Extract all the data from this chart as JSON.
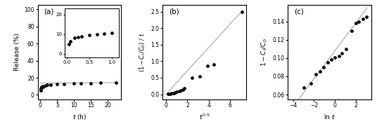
{
  "panel_a": {
    "label": "(a)",
    "scatter_x": [
      0.05,
      0.08,
      0.17,
      0.25,
      0.33,
      0.5,
      0.67,
      0.83,
      1.0,
      1.5,
      2.0,
      3.0,
      5.0,
      7.0,
      10.0,
      12.0,
      15.0,
      18.0,
      22.5
    ],
    "scatter_y": [
      5.0,
      6.5,
      8.0,
      8.5,
      9.0,
      9.5,
      9.8,
      10.2,
      10.5,
      11.0,
      11.5,
      12.0,
      12.5,
      12.8,
      13.2,
      13.5,
      13.8,
      14.0,
      14.2
    ],
    "fit_x": [
      0.0,
      22.5
    ],
    "fit_y": [
      13.8,
      14.3
    ],
    "xlabel": "$t$ (h)",
    "ylabel": "Release (%)",
    "xlim": [
      -0.8,
      24.0
    ],
    "ylim": [
      -5,
      105
    ],
    "yticks": [
      0,
      20,
      40,
      60,
      80,
      100
    ],
    "xticks": [
      0,
      5,
      10,
      15,
      20
    ],
    "inset": {
      "scatter_x": [
        0.05,
        0.08,
        0.17,
        0.25,
        0.33,
        0.5,
        0.67,
        0.83,
        1.0
      ],
      "scatter_y": [
        5.0,
        6.5,
        8.0,
        8.5,
        9.0,
        9.5,
        9.8,
        10.2,
        10.5
      ],
      "xlim": [
        -0.05,
        1.15
      ],
      "ylim": [
        -2,
        23
      ],
      "xticks": [
        0.0,
        0.5,
        1.0
      ],
      "yticks": [
        0,
        10,
        20
      ]
    }
  },
  "panel_b": {
    "label": "(b)",
    "scatter_x": [
      0.22,
      0.29,
      0.41,
      0.55,
      0.71,
      0.84,
      1.0,
      1.22,
      1.41,
      1.58,
      1.73,
      2.45,
      3.16,
      3.87,
      4.47,
      7.07
    ],
    "scatter_y": [
      0.01,
      0.01,
      0.02,
      0.03,
      0.04,
      0.05,
      0.07,
      0.1,
      0.12,
      0.14,
      0.17,
      0.5,
      0.55,
      0.85,
      0.9,
      2.5
    ],
    "fit_x": [
      0.0,
      7.2
    ],
    "fit_y": [
      0.0,
      2.55
    ],
    "xlabel": "$t^{0.5}$",
    "ylabel": "$(1-C_t/C_0)$ / $t$",
    "xlim": [
      -0.3,
      7.5
    ],
    "ylim": [
      -0.15,
      2.7
    ],
    "yticks": [
      0.0,
      0.5,
      1.0,
      1.5,
      2.0,
      2.5
    ],
    "xticks": [
      0,
      2,
      4,
      6
    ]
  },
  "panel_c": {
    "label": "(c)",
    "scatter_x": [
      -3.0,
      -2.3,
      -1.8,
      -1.4,
      -1.1,
      -0.69,
      -0.34,
      0.0,
      0.41,
      0.69,
      1.1,
      1.61,
      2.0,
      2.3,
      2.71,
      3.0
    ],
    "scatter_y": [
      0.068,
      0.072,
      0.082,
      0.085,
      0.09,
      0.095,
      0.098,
      0.101,
      0.102,
      0.105,
      0.11,
      0.13,
      0.138,
      0.14,
      0.143,
      0.145
    ],
    "fit_x": [
      -4.2,
      3.1
    ],
    "fit_y": [
      0.044,
      0.155
    ],
    "xlabel": "ln $t$",
    "ylabel": "$1-C_t/C_0$",
    "xlim": [
      -4.5,
      3.5
    ],
    "ylim": [
      0.055,
      0.158
    ],
    "yticks": [
      0.06,
      0.08,
      0.1,
      0.12,
      0.14
    ],
    "xticks": [
      -4,
      -2,
      0,
      2
    ]
  },
  "marker": "o",
  "markersize": 2.5,
  "markerfacecolor": "#111111",
  "markeredgecolor": "#111111",
  "linecolor": "#aaaaaa",
  "linewidth": 0.8,
  "fontsize_label": 6.5,
  "fontsize_tick": 5.5,
  "fontsize_panel": 7.5
}
